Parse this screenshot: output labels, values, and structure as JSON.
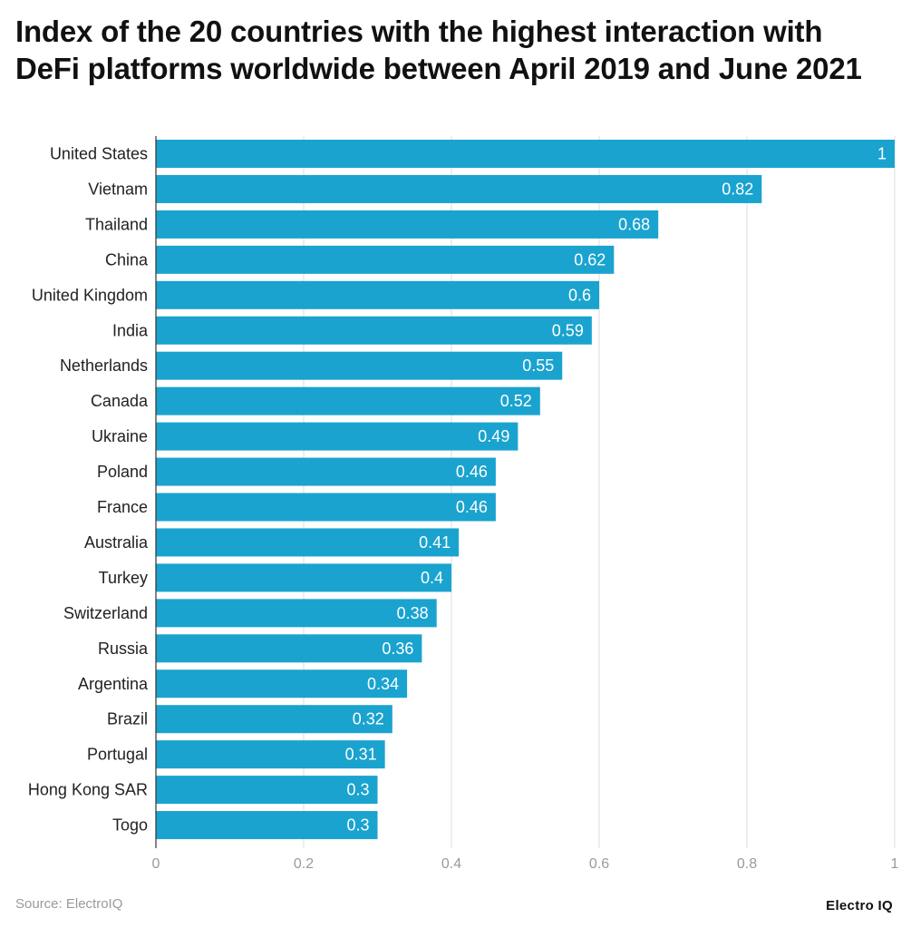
{
  "chart_data": {
    "type": "bar",
    "orientation": "horizontal",
    "title": "Index of the 20 countries with the highest interaction with DeFi platforms worldwide between April 2019 and June 2021",
    "categories": [
      "United States",
      "Vietnam",
      "Thailand",
      "China",
      "United Kingdom",
      "India",
      "Netherlands",
      "Canada",
      "Ukraine",
      "Poland",
      "France",
      "Australia",
      "Turkey",
      "Switzerland",
      "Russia",
      "Argentina",
      "Brazil",
      "Portugal",
      "Hong Kong SAR",
      "Togo"
    ],
    "values": [
      1,
      0.82,
      0.68,
      0.62,
      0.6,
      0.59,
      0.55,
      0.52,
      0.49,
      0.46,
      0.46,
      0.41,
      0.4,
      0.38,
      0.36,
      0.34,
      0.32,
      0.31,
      0.3,
      0.3
    ],
    "value_labels": [
      "1",
      "0.82",
      "0.68",
      "0.62",
      "0.6",
      "0.59",
      "0.55",
      "0.52",
      "0.49",
      "0.46",
      "0.46",
      "0.41",
      "0.4",
      "0.38",
      "0.36",
      "0.34",
      "0.32",
      "0.31",
      "0.3",
      "0.3"
    ],
    "xlim": [
      0,
      1
    ],
    "xticks": [
      0,
      0.2,
      0.4,
      0.6,
      0.8,
      1
    ],
    "xtick_labels": [
      "0",
      "0.2",
      "0.4",
      "0.6",
      "0.8",
      "1"
    ],
    "xlabel": "",
    "ylabel": "",
    "grid": true,
    "legend": "none",
    "bar_color": "#1aa3cf"
  },
  "footer": {
    "source": "Source: ElectroIQ",
    "brand": "Electro IQ"
  }
}
